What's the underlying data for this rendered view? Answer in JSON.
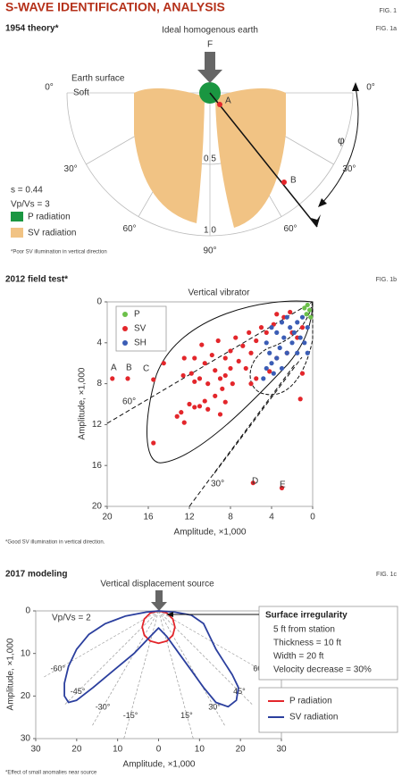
{
  "header": {
    "title": "S-WAVE IDENTIFICATION, ANALYSIS",
    "fig": "FIG. 1"
  },
  "chart_data": [
    {
      "type": "polar",
      "title": "1954 theory*",
      "fig": "FIG. 1a",
      "subtitle": "Ideal homogenous earth",
      "annotations": [
        "F",
        "Earth surface",
        "Soft",
        "A",
        "B",
        "φ",
        "s = 0.44",
        "Vp/Vs = 3"
      ],
      "rticks": [
        0.5,
        {
          "value": 1,
          "label": "1.0"
        }
      ],
      "angle_ticks": [
        {
          "value": 0,
          "label": "0°"
        },
        {
          "value": 30,
          "label": "30°"
        },
        {
          "value": 60,
          "label": "60°"
        },
        {
          "value": 90,
          "label": "90°"
        }
      ],
      "series": [
        {
          "name": "P radiation",
          "color": "#1a9641"
        },
        {
          "name": "SV radiation",
          "color": "#f1c384"
        }
      ],
      "footnote": "*Poor SV illumination in vertical direction"
    },
    {
      "type": "scatter",
      "title": "2012 field test*",
      "fig": "FIG. 1b",
      "subtitle": "Vertical vibrator",
      "xlabel": "Amplitude, ×1,000",
      "ylabel": "Amplitude, ×1,000",
      "xlim": [
        20,
        0
      ],
      "ylim": [
        20,
        0
      ],
      "xticks": [
        20,
        16,
        12,
        8,
        4,
        0
      ],
      "yticks": [
        0,
        4,
        8,
        12,
        16,
        20
      ],
      "annotations": [
        "A",
        "B",
        "C",
        "D",
        "E",
        "60°",
        "30°"
      ],
      "series": [
        {
          "name": "P",
          "color": "#6cc04a",
          "x": [
            0.5,
            0.3,
            0.8,
            0.2,
            0.6
          ],
          "values": [
            0.3,
            0.8,
            0.6,
            1.5,
            1.2
          ]
        },
        {
          "name": "SV",
          "color": "#e3262b",
          "x": [
            15.5,
            13.2,
            12.8,
            12.5,
            12,
            11.5,
            11,
            10.5,
            10.2,
            9.5,
            9,
            8.8,
            8.5,
            12.6,
            11.8,
            11.5,
            11,
            10.2,
            9.5,
            9,
            8.5,
            8,
            7.8,
            12.5,
            11.5,
            10.5,
            9.8,
            8.5,
            8,
            7.2,
            6.8,
            6.5,
            6,
            7.5,
            6.2,
            5.5,
            5,
            4.5,
            3.8,
            3.5,
            2.8,
            2.2,
            9.2,
            14.5,
            3.5,
            4.2,
            2.5,
            2,
            1.5,
            1,
            5.5,
            6,
            1,
            1.2,
            10.8,
            19.5,
            18,
            15.5,
            5.8,
            3
          ],
          "values": [
            13.8,
            11.2,
            10.8,
            11.8,
            10,
            10.3,
            10.2,
            9.7,
            10.5,
            9.2,
            11,
            8.5,
            9.8,
            7.2,
            7,
            7.8,
            7.5,
            8,
            6.7,
            7.5,
            7.2,
            6.5,
            8,
            5.5,
            5.5,
            6,
            5.2,
            5.5,
            4.8,
            5.8,
            4.3,
            6.5,
            5,
            3.5,
            3,
            3.8,
            2.5,
            3,
            2.2,
            1.2,
            1.5,
            1,
            3.8,
            6,
            5.5,
            6.8,
            5,
            3,
            3.5,
            2.5,
            7.5,
            8,
            7,
            9.5,
            4.2,
            7.5,
            7.5,
            7.6,
            17.7,
            18.2
          ]
        },
        {
          "name": "SH",
          "color": "#3b5db5",
          "x": [
            4.5,
            4.2,
            4,
            3.8,
            3.5,
            3.2,
            3,
            2.8,
            2.5,
            2.2,
            2,
            1.8,
            1.5,
            1.2,
            1,
            0.8,
            0.5,
            3.5,
            4.8,
            4.5,
            2.5,
            1.5,
            3,
            4,
            0.5
          ],
          "values": [
            4,
            5,
            6,
            7,
            5.5,
            4.5,
            6.5,
            3.5,
            5,
            2.5,
            4,
            3,
            2,
            3.5,
            1.5,
            4,
            2.5,
            3,
            7.5,
            6.5,
            1.5,
            5,
            2,
            2.5,
            5
          ]
        }
      ],
      "footnote": "*Good SV illumination in vertical direction."
    },
    {
      "type": "line",
      "title": "2017 modeling",
      "fig": "FIG. 1c",
      "subtitle": "Vertical displacement source",
      "xlabel": "Amplitude, ×1,000",
      "ylabel": "Amplitude, ×1,000",
      "xlim": [
        -30,
        30
      ],
      "ylim": [
        30,
        0
      ],
      "xticks": [
        {
          "value": -30,
          "label": "30"
        },
        {
          "value": -20,
          "label": "20"
        },
        {
          "value": -10,
          "label": "10"
        },
        0,
        10,
        20,
        30
      ],
      "yticks": [
        0,
        10,
        20,
        30
      ],
      "angle_ticks": [
        {
          "value": -60,
          "label": "-60°"
        },
        {
          "value": -45,
          "label": "-45°"
        },
        {
          "value": -30,
          "label": "-30°"
        },
        {
          "value": -15,
          "label": "-15°"
        },
        {
          "value": 15,
          "label": "15°"
        },
        {
          "value": 30,
          "label": "30°"
        },
        {
          "value": 45,
          "label": "45°"
        },
        {
          "value": 60,
          "label": "60°"
        }
      ],
      "annotations": [
        "Vp/Vs = 2"
      ],
      "box": {
        "title": "Surface irregularity",
        "lines": [
          "5 ft from station",
          "Thickness = 10 ft",
          "Width = 20 ft",
          "Velocity decrease = 30%"
        ]
      },
      "series": [
        {
          "name": "P radiation",
          "color": "#e3262b",
          "x": [
            0,
            2,
            3.5,
            4,
            3.5,
            2,
            0,
            -2,
            -3.5,
            -4,
            -3.5,
            -2,
            0
          ],
          "values": [
            0,
            0.5,
            1.9,
            3.8,
            5.7,
            7.1,
            7.6,
            7.1,
            5.7,
            3.8,
            1.9,
            0.5,
            0
          ]
        },
        {
          "name": "SV radiation",
          "color": "#2b3f9e",
          "x": [
            0,
            -3,
            -8,
            -13,
            -17,
            -20,
            -22,
            -23,
            -23,
            -22,
            -20,
            -16,
            -11,
            -6,
            -2,
            0,
            2,
            5,
            8,
            11,
            14,
            17,
            19,
            19.5,
            18,
            16,
            14,
            12.5,
            11,
            8,
            4,
            0
          ],
          "values": [
            0,
            0.3,
            1.2,
            3,
            5.5,
            9,
            13,
            17,
            20,
            21.5,
            21,
            18,
            14,
            10,
            6,
            4,
            6,
            10,
            14,
            18,
            21.5,
            22.5,
            21,
            18,
            15,
            12,
            9,
            6,
            3,
            1,
            0.3,
            0
          ]
        }
      ],
      "footnote": "*Effect of small anomalies near source"
    }
  ]
}
